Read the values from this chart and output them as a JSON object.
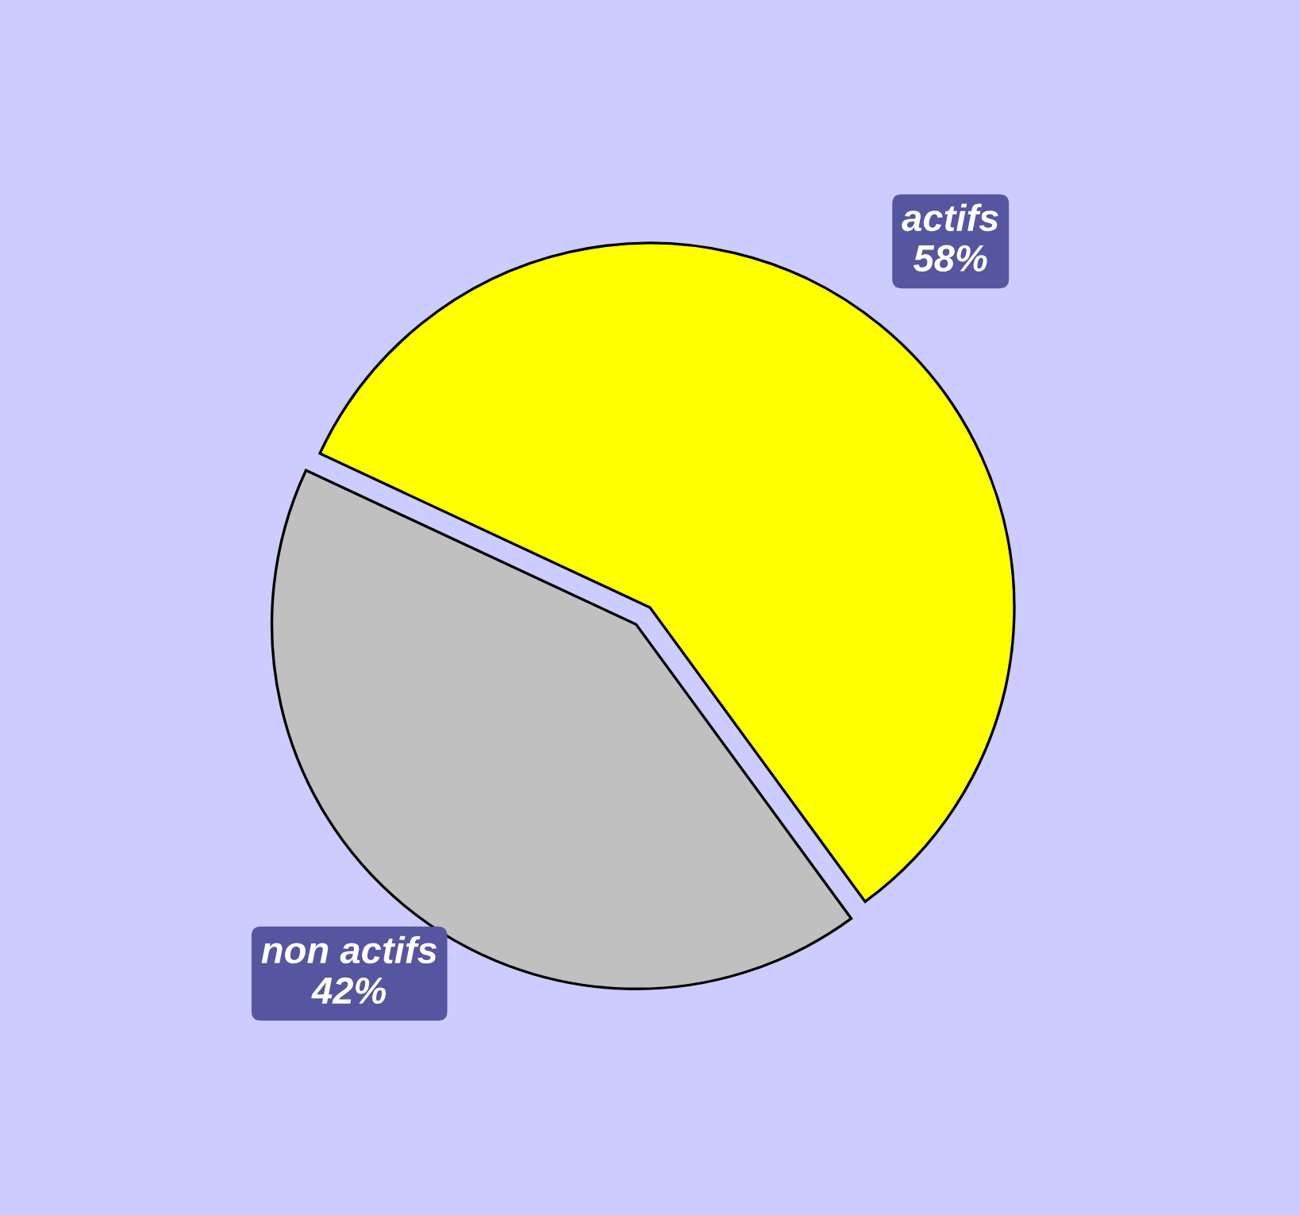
{
  "chart_data": {
    "type": "pie",
    "categories": [
      "actifs",
      "non actifs"
    ],
    "values": [
      58,
      42
    ],
    "colors": [
      "#ffff00",
      "#c0c0c0"
    ],
    "value_labels": [
      "58%",
      "42%"
    ]
  }
}
